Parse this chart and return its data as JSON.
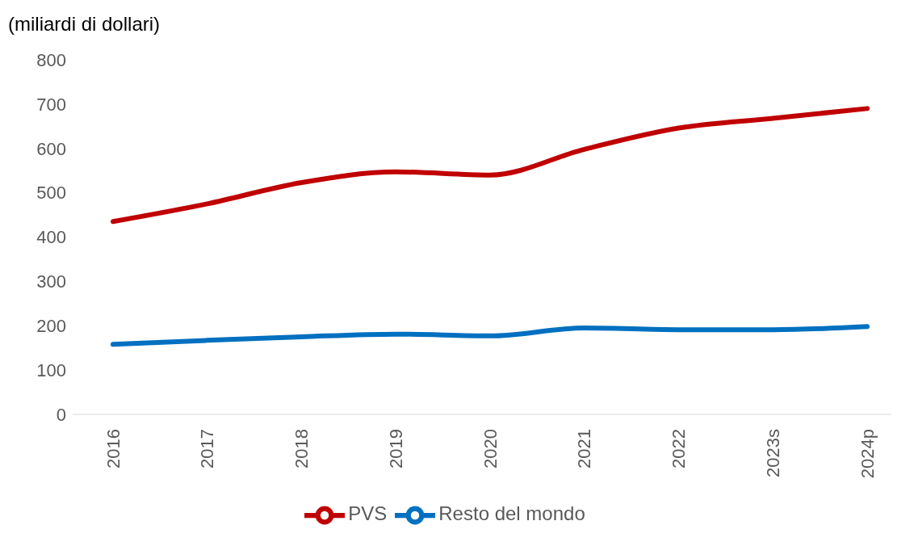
{
  "chart_data": {
    "type": "line",
    "ylabel": "(miliardi di dollari)",
    "categories": [
      "2016",
      "2017",
      "2018",
      "2019",
      "2020",
      "2021",
      "2022",
      "2023s",
      "2024p"
    ],
    "series": [
      {
        "name": "PVS",
        "color": "#c00000",
        "values": [
          435,
          475,
          523,
          547,
          540,
          598,
          646,
          668,
          690
        ]
      },
      {
        "name": "Resto del mondo",
        "color": "#0070c0",
        "values": [
          158,
          167,
          175,
          181,
          177,
          195,
          191,
          191,
          198
        ]
      }
    ],
    "ylim": [
      0,
      800
    ],
    "yticks": [
      0,
      100,
      200,
      300,
      400,
      500,
      600,
      700,
      800
    ],
    "grid": false,
    "legend": "bottom",
    "marker": "none",
    "line_style": "solid"
  }
}
